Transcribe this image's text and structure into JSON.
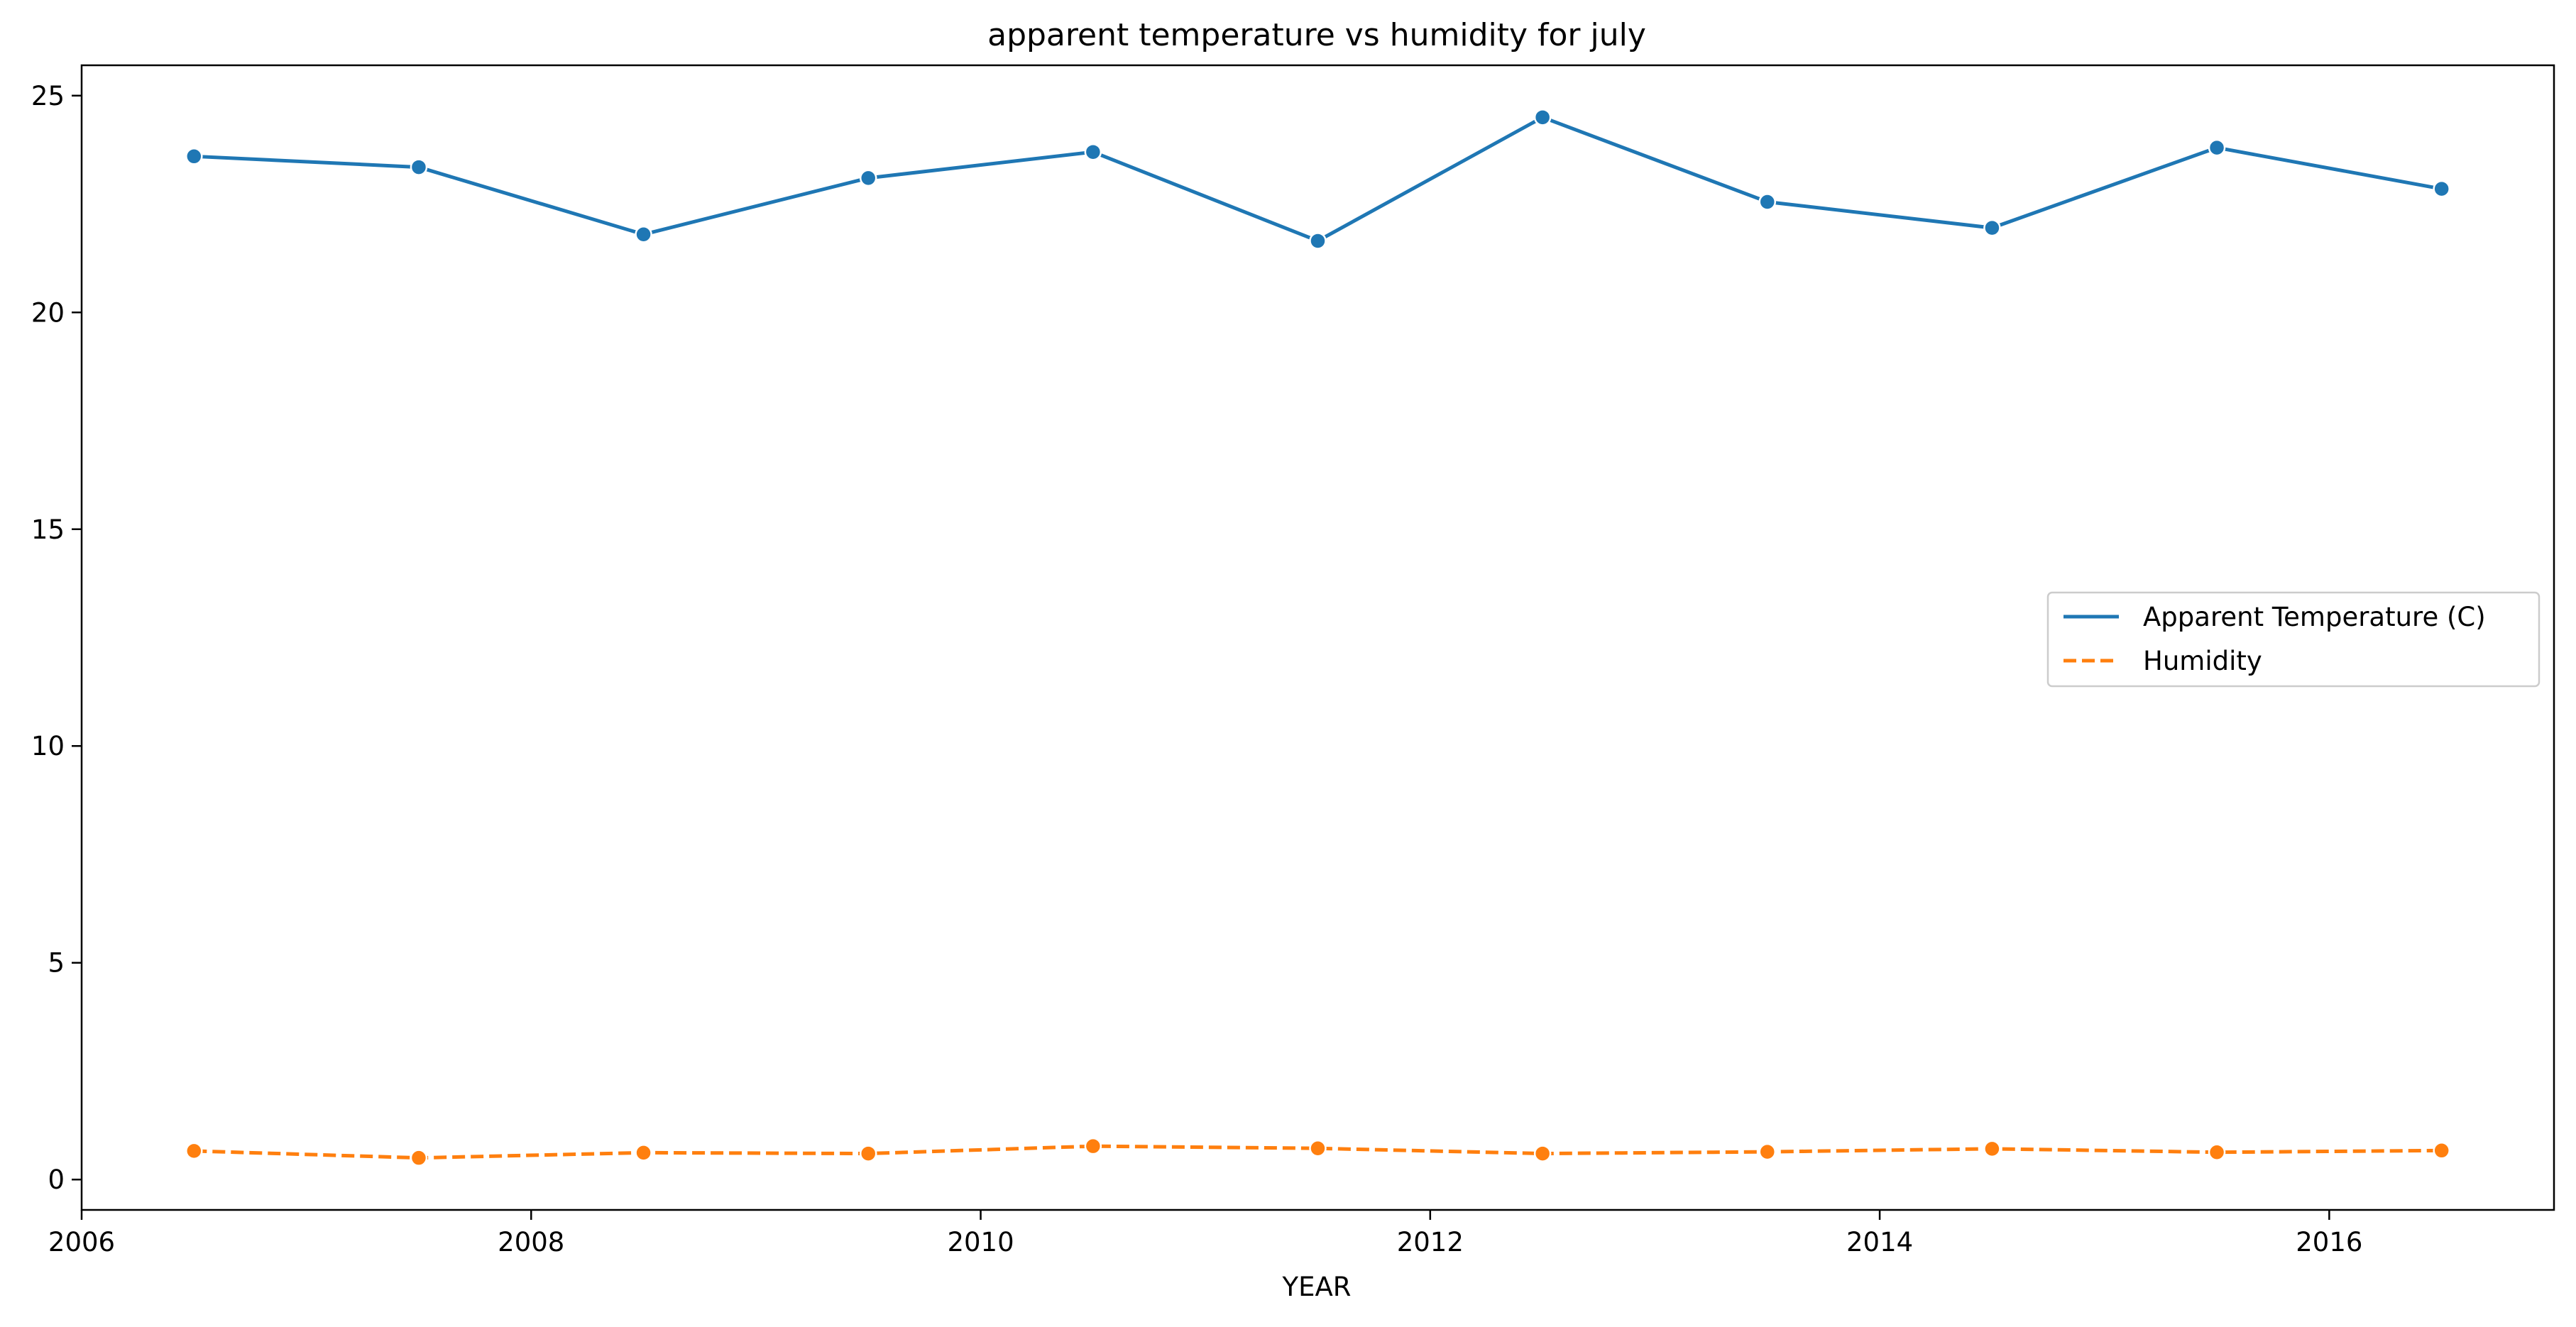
{
  "chart_data": {
    "type": "line",
    "title": "apparent temperature vs humidity for july",
    "xlabel": "YEAR",
    "ylabel": "",
    "xlim": [
      2006,
      2017
    ],
    "ylim": [
      -0.7,
      25.7
    ],
    "xticks": [
      2006,
      2008,
      2010,
      2012,
      2014,
      2016
    ],
    "xtick_labels": [
      "2006",
      "2008",
      "2010",
      "2012",
      "2014",
      "2016"
    ],
    "yticks": [
      0,
      5,
      10,
      15,
      20,
      25
    ],
    "ytick_labels": [
      "0",
      "5",
      "10",
      "15",
      "20",
      "25"
    ],
    "x": [
      2006.5,
      2007.5,
      2008.5,
      2009.5,
      2010.5,
      2011.5,
      2012.5,
      2013.5,
      2014.5,
      2015.5,
      2016.5
    ],
    "series": [
      {
        "name": "Apparent Temperature (C)",
        "color": "#1f77b4",
        "dash": "solid",
        "marker": "circle",
        "values": [
          23.6,
          23.35,
          21.8,
          23.1,
          23.7,
          21.65,
          24.5,
          22.55,
          21.95,
          23.8,
          22.85
        ]
      },
      {
        "name": "Humidity",
        "color": "#ff7f0e",
        "dash": "dashed",
        "marker": "circle",
        "values": [
          0.66,
          0.5,
          0.62,
          0.6,
          0.77,
          0.72,
          0.6,
          0.64,
          0.71,
          0.63,
          0.67
        ]
      }
    ],
    "grid": false,
    "legend_position": "center-right"
  }
}
